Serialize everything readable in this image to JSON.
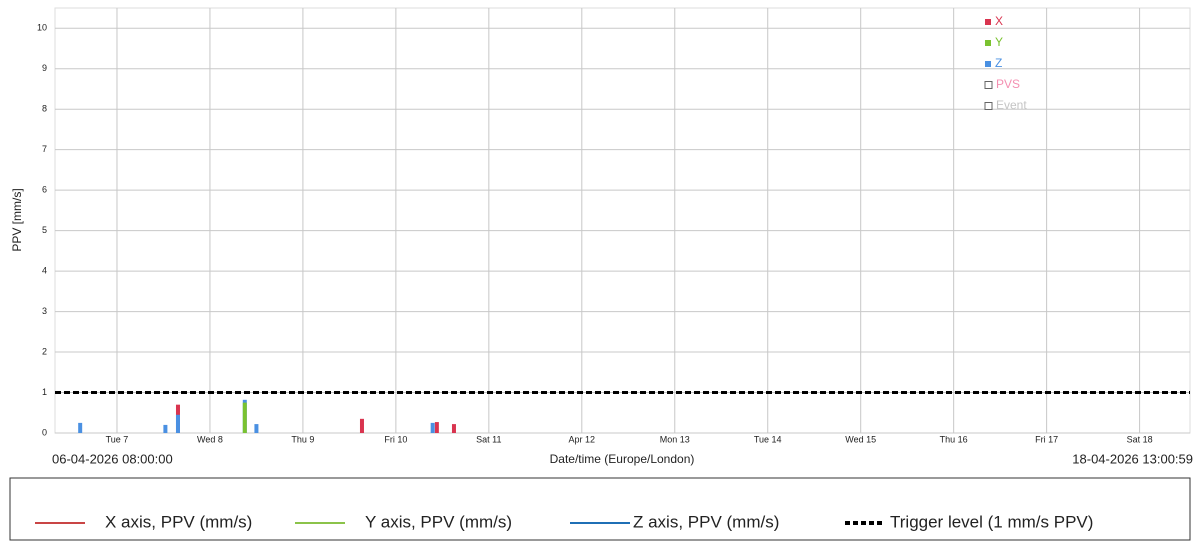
{
  "chart_data": {
    "type": "bar",
    "y_label": "PPV [mm/s]",
    "x_label": "Date/time (Europe/London)",
    "xlim": [
      {
        "value": "2026-04-06T08:00:00",
        "label": "06-04-2026 08:00:00"
      },
      {
        "value": "2026-04-18T13:00:59",
        "label": "18-04-2026 13:00:59"
      }
    ],
    "xticks": [
      {
        "value": "2026-04-07T00:00",
        "label": "Tue 7"
      },
      {
        "value": "2026-04-08T00:00",
        "label": "Wed 8"
      },
      {
        "value": "2026-04-09T00:00",
        "label": "Thu 9"
      },
      {
        "value": "2026-04-10T00:00",
        "label": "Fri 10"
      },
      {
        "value": "2026-04-11T00:00",
        "label": "Sat 11"
      },
      {
        "value": "2026-04-12T00:00",
        "label": "Apr 12"
      },
      {
        "value": "2026-04-13T00:00",
        "label": "Mon 13"
      },
      {
        "value": "2026-04-14T00:00",
        "label": "Tue 14"
      },
      {
        "value": "2026-04-15T00:00",
        "label": "Wed 15"
      },
      {
        "value": "2026-04-16T00:00",
        "label": "Thu 16"
      },
      {
        "value": "2026-04-17T00:00",
        "label": "Fri 17"
      },
      {
        "value": "2026-04-18T00:00",
        "label": "Sat 18"
      }
    ],
    "ylim": [
      0,
      10.5
    ],
    "yticks": [
      0,
      1,
      2,
      3,
      4,
      5,
      6,
      7,
      8,
      9,
      10
    ],
    "grid": true,
    "series": [
      {
        "name": "X",
        "color": "#d9344f",
        "x": [
          "2026-04-07T15:45",
          "2026-04-09T15:15",
          "2026-04-10T10:35",
          "2026-04-10T15:00"
        ],
        "values": [
          0.7,
          0.35,
          0.27,
          0.22
        ]
      },
      {
        "name": "Y",
        "color": "#7ac230",
        "x": [
          "2026-04-08T09:00"
        ],
        "values": [
          0.75
        ]
      },
      {
        "name": "Z",
        "color": "#4a90e2",
        "x": [
          "2026-04-06T14:30",
          "2026-04-07T12:30",
          "2026-04-07T15:45",
          "2026-04-08T09:00",
          "2026-04-08T12:00",
          "2026-04-10T09:30"
        ],
        "values": [
          0.25,
          0.2,
          0.45,
          0.82,
          0.22,
          0.25
        ]
      }
    ],
    "legend": {
      "position": "top-right",
      "extra": [
        {
          "name": "PVS",
          "color": "#f48fb1"
        },
        {
          "name": "Event",
          "color": "#c4c4c4"
        }
      ]
    },
    "trigger_level": 1,
    "bottom_legend": [
      {
        "label": "X axis, PPV (mm/s)",
        "color": "#c94545",
        "style": "solid"
      },
      {
        "label": "Y axis, PPV (mm/s)",
        "color": "#8bc34a",
        "style": "solid"
      },
      {
        "label": "Z axis, PPV (mm/s)",
        "color": "#1f6fb5",
        "style": "solid"
      },
      {
        "label": "Trigger level (1 mm/s PPV)",
        "color": "#000000",
        "style": "dashed"
      }
    ]
  }
}
